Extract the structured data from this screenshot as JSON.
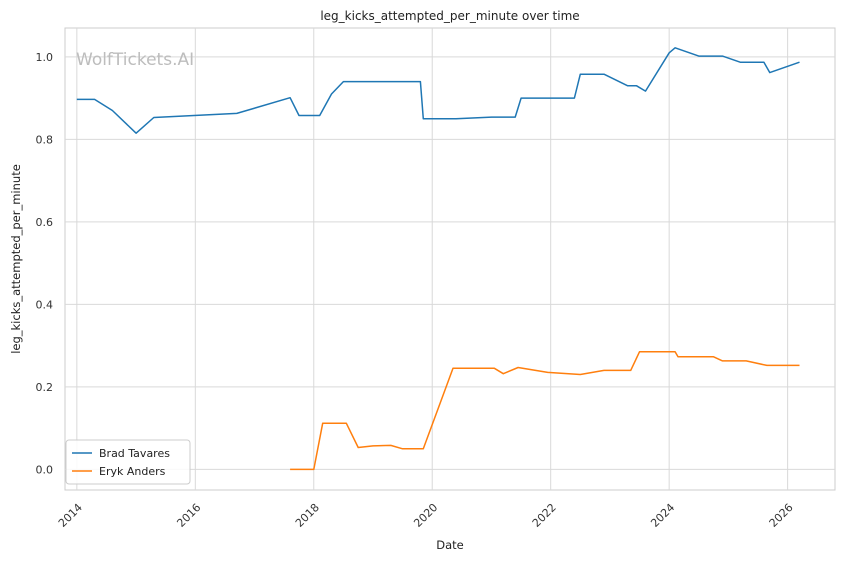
{
  "chart_data": {
    "type": "line",
    "title": "leg_kicks_attempted_per_minute over time",
    "xlabel": "Date",
    "ylabel": "leg_kicks_attempted_per_minute",
    "watermark": "WolfTickets.AI",
    "xlim": [
      2013.8,
      2026.8
    ],
    "ylim": [
      -0.05,
      1.07
    ],
    "x_ticks": [
      2014,
      2016,
      2018,
      2020,
      2022,
      2024,
      2026
    ],
    "y_ticks": [
      0.0,
      0.2,
      0.4,
      0.6,
      0.8,
      1.0
    ],
    "grid": true,
    "legend_position": "lower-left",
    "series": [
      {
        "name": "Brad Tavares",
        "color": "#1f77b4",
        "points": [
          [
            2014.0,
            0.897
          ],
          [
            2014.3,
            0.897
          ],
          [
            2014.6,
            0.87
          ],
          [
            2015.0,
            0.815
          ],
          [
            2015.3,
            0.853
          ],
          [
            2016.7,
            0.863
          ],
          [
            2017.6,
            0.901
          ],
          [
            2017.75,
            0.858
          ],
          [
            2018.1,
            0.858
          ],
          [
            2018.3,
            0.91
          ],
          [
            2018.5,
            0.94
          ],
          [
            2019.8,
            0.94
          ],
          [
            2019.85,
            0.85
          ],
          [
            2020.4,
            0.85
          ],
          [
            2021.0,
            0.854
          ],
          [
            2021.4,
            0.854
          ],
          [
            2021.5,
            0.9
          ],
          [
            2022.4,
            0.9
          ],
          [
            2022.5,
            0.958
          ],
          [
            2022.9,
            0.958
          ],
          [
            2023.3,
            0.93
          ],
          [
            2023.45,
            0.93
          ],
          [
            2023.6,
            0.917
          ],
          [
            2024.0,
            1.01
          ],
          [
            2024.1,
            1.022
          ],
          [
            2024.5,
            1.002
          ],
          [
            2024.9,
            1.002
          ],
          [
            2025.2,
            0.987
          ],
          [
            2025.6,
            0.987
          ],
          [
            2025.7,
            0.962
          ],
          [
            2026.2,
            0.987
          ]
        ]
      },
      {
        "name": "Eryk Anders",
        "color": "#ff7f0e",
        "points": [
          [
            2017.6,
            0.0
          ],
          [
            2018.0,
            0.0
          ],
          [
            2018.15,
            0.112
          ],
          [
            2018.55,
            0.112
          ],
          [
            2018.75,
            0.053
          ],
          [
            2019.0,
            0.057
          ],
          [
            2019.3,
            0.058
          ],
          [
            2019.5,
            0.05
          ],
          [
            2019.85,
            0.05
          ],
          [
            2020.35,
            0.245
          ],
          [
            2021.05,
            0.245
          ],
          [
            2021.2,
            0.232
          ],
          [
            2021.45,
            0.247
          ],
          [
            2021.95,
            0.235
          ],
          [
            2022.5,
            0.23
          ],
          [
            2022.9,
            0.24
          ],
          [
            2023.35,
            0.24
          ],
          [
            2023.5,
            0.285
          ],
          [
            2024.1,
            0.285
          ],
          [
            2024.15,
            0.273
          ],
          [
            2024.75,
            0.273
          ],
          [
            2024.9,
            0.263
          ],
          [
            2025.3,
            0.263
          ],
          [
            2025.65,
            0.252
          ],
          [
            2026.2,
            0.252
          ]
        ]
      }
    ]
  }
}
